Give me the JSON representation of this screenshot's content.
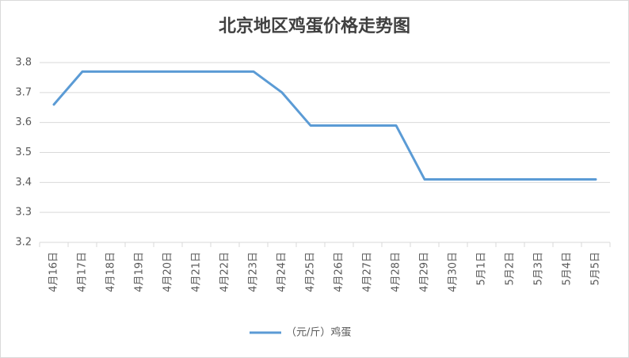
{
  "chart_data": {
    "type": "line",
    "title": "北京地区鸡蛋价格走势图",
    "categories": [
      "4月16日",
      "4月17日",
      "4月18日",
      "4月19日",
      "4月20日",
      "4月21日",
      "4月22日",
      "4月23日",
      "4月24日",
      "4月25日",
      "4月26日",
      "4月27日",
      "4月28日",
      "4月29日",
      "4月30日",
      "5月1日",
      "5月2日",
      "5月3日",
      "5月4日",
      "5月5日"
    ],
    "series": [
      {
        "name": "（元/斤）鸡蛋",
        "color": "#5b9bd5",
        "values": [
          3.66,
          3.77,
          3.77,
          3.77,
          3.77,
          3.77,
          3.77,
          3.77,
          3.7,
          3.59,
          3.59,
          3.59,
          3.59,
          3.41,
          3.41,
          3.41,
          3.41,
          3.41,
          3.41,
          3.41
        ]
      }
    ],
    "ylim": [
      3.2,
      3.8
    ],
    "yticks": [
      3.2,
      3.3,
      3.4,
      3.5,
      3.6,
      3.7,
      3.8
    ],
    "grid": true,
    "legend": "bottom"
  }
}
